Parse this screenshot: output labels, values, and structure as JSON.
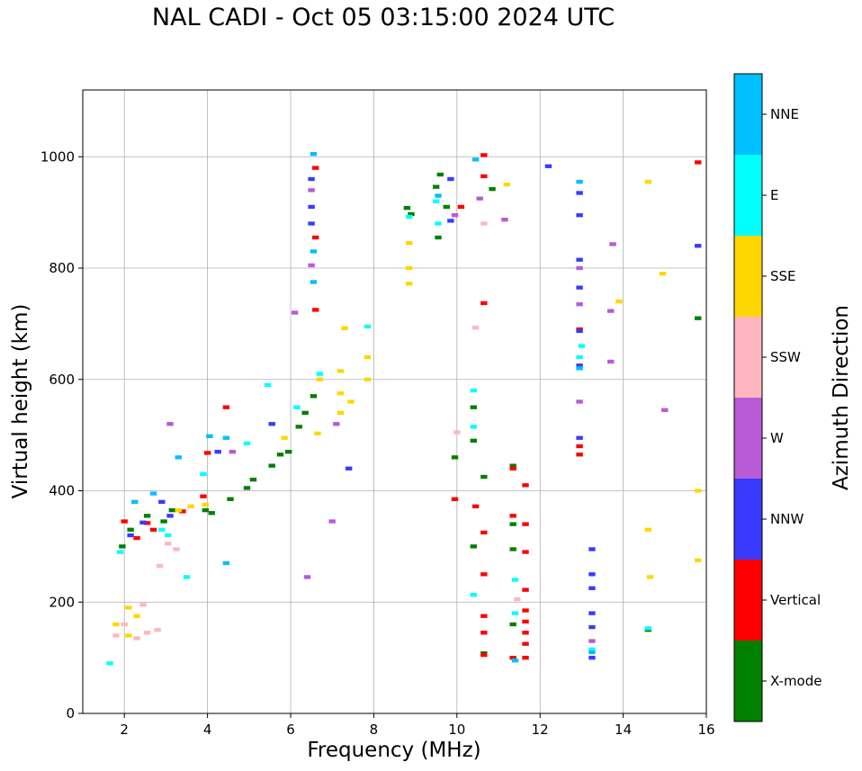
{
  "chart_data": {
    "type": "scatter",
    "title": "NAL CADI - Oct 05 03:15:00 2024 UTC",
    "xlabel": "Frequency (MHz)",
    "ylabel": "Virtual height (km)",
    "xlim": [
      1,
      16
    ],
    "ylim": [
      0,
      1120
    ],
    "xticks": [
      2,
      4,
      6,
      8,
      10,
      12,
      14,
      16
    ],
    "yticks": [
      0,
      200,
      400,
      600,
      800,
      1000
    ],
    "grid": true,
    "colorbar": {
      "label": "Azimuth Direction",
      "categories": [
        {
          "name": "X-mode",
          "color": "#008000"
        },
        {
          "name": "Vertical",
          "color": "#ff0000"
        },
        {
          "name": "NNW",
          "color": "#3a3aff"
        },
        {
          "name": "W",
          "color": "#b85ad6"
        },
        {
          "name": "SSW",
          "color": "#ffb6c1"
        },
        {
          "name": "SSE",
          "color": "#ffd700"
        },
        {
          "name": "E",
          "color": "#00ffff"
        },
        {
          "name": "NNE",
          "color": "#00bfff"
        }
      ]
    },
    "series": [
      {
        "name": "X-mode",
        "points": [
          [
            1.95,
            300
          ],
          [
            2.15,
            330
          ],
          [
            2.55,
            355
          ],
          [
            2.95,
            345
          ],
          [
            3.15,
            365
          ],
          [
            3.95,
            365
          ],
          [
            4.1,
            360
          ],
          [
            4.55,
            385
          ],
          [
            4.95,
            405
          ],
          [
            5.1,
            420
          ],
          [
            5.55,
            445
          ],
          [
            5.75,
            465
          ],
          [
            5.95,
            470
          ],
          [
            6.2,
            515
          ],
          [
            6.35,
            540
          ],
          [
            6.55,
            570
          ],
          [
            8.8,
            908
          ],
          [
            8.9,
            897
          ],
          [
            9.5,
            946
          ],
          [
            9.6,
            968
          ],
          [
            9.75,
            910
          ],
          [
            9.55,
            855
          ],
          [
            9.95,
            460
          ],
          [
            10.4,
            490
          ],
          [
            10.4,
            550
          ],
          [
            10.4,
            300
          ],
          [
            10.65,
            425
          ],
          [
            10.65,
            108
          ],
          [
            10.85,
            942
          ],
          [
            11.35,
            340
          ],
          [
            11.35,
            295
          ],
          [
            11.35,
            160
          ],
          [
            11.35,
            445
          ],
          [
            14.6,
            150
          ],
          [
            15.8,
            710
          ]
        ]
      },
      {
        "name": "Vertical",
        "points": [
          [
            2.0,
            345
          ],
          [
            2.3,
            315
          ],
          [
            2.55,
            342
          ],
          [
            2.7,
            330
          ],
          [
            3.4,
            363
          ],
          [
            3.9,
            390
          ],
          [
            4.0,
            468
          ],
          [
            4.45,
            550
          ],
          [
            6.6,
            855
          ],
          [
            6.6,
            980
          ],
          [
            6.6,
            725
          ],
          [
            10.65,
            1003
          ],
          [
            10.65,
            965
          ],
          [
            10.65,
            737
          ],
          [
            10.65,
            325
          ],
          [
            10.65,
            250
          ],
          [
            10.65,
            175
          ],
          [
            10.65,
            145
          ],
          [
            10.65,
            105
          ],
          [
            11.35,
            440
          ],
          [
            11.35,
            355
          ],
          [
            11.35,
            100
          ],
          [
            11.65,
            340
          ],
          [
            11.65,
            290
          ],
          [
            11.65,
            222
          ],
          [
            11.65,
            185
          ],
          [
            11.65,
            165
          ],
          [
            11.65,
            145
          ],
          [
            11.65,
            125
          ],
          [
            11.65,
            100
          ],
          [
            11.65,
            410
          ],
          [
            12.95,
            480
          ],
          [
            12.95,
            465
          ],
          [
            12.95,
            690
          ],
          [
            10.1,
            910
          ],
          [
            9.95,
            385
          ],
          [
            10.45,
            372
          ],
          [
            15.8,
            990
          ]
        ]
      },
      {
        "name": "NNW",
        "points": [
          [
            2.15,
            320
          ],
          [
            2.45,
            343
          ],
          [
            2.9,
            380
          ],
          [
            3.1,
            355
          ],
          [
            4.25,
            470
          ],
          [
            5.55,
            520
          ],
          [
            6.5,
            880
          ],
          [
            6.5,
            910
          ],
          [
            6.5,
            960
          ],
          [
            7.4,
            440
          ],
          [
            12.95,
            935
          ],
          [
            12.95,
            895
          ],
          [
            12.95,
            815
          ],
          [
            12.95,
            765
          ],
          [
            12.95,
            687
          ],
          [
            12.95,
            625
          ],
          [
            12.95,
            495
          ],
          [
            13.25,
            295
          ],
          [
            13.25,
            250
          ],
          [
            13.25,
            225
          ],
          [
            13.25,
            180
          ],
          [
            13.25,
            155
          ],
          [
            13.25,
            100
          ],
          [
            9.85,
            960
          ],
          [
            9.85,
            885
          ],
          [
            12.2,
            983
          ],
          [
            15.8,
            840
          ]
        ]
      },
      {
        "name": "W",
        "points": [
          [
            3.1,
            520
          ],
          [
            4.6,
            470
          ],
          [
            6.1,
            720
          ],
          [
            6.5,
            805
          ],
          [
            6.5,
            940
          ],
          [
            7.0,
            345
          ],
          [
            7.1,
            520
          ],
          [
            9.95,
            895
          ],
          [
            10.55,
            925
          ],
          [
            11.15,
            887
          ],
          [
            13.75,
            843
          ],
          [
            13.7,
            723
          ],
          [
            13.7,
            632
          ],
          [
            12.95,
            735
          ],
          [
            12.95,
            560
          ],
          [
            12.95,
            800
          ],
          [
            13.25,
            130
          ],
          [
            6.4,
            245
          ],
          [
            15.0,
            545
          ]
        ]
      },
      {
        "name": "SSW",
        "points": [
          [
            1.8,
            140
          ],
          [
            2.0,
            160
          ],
          [
            2.3,
            135
          ],
          [
            2.55,
            145
          ],
          [
            2.8,
            150
          ],
          [
            2.45,
            195
          ],
          [
            2.85,
            265
          ],
          [
            3.25,
            295
          ],
          [
            3.05,
            305
          ],
          [
            10.0,
            505
          ],
          [
            10.65,
            880
          ],
          [
            10.45,
            693
          ],
          [
            11.45,
            205
          ]
        ]
      },
      {
        "name": "SSE",
        "points": [
          [
            1.8,
            160
          ],
          [
            2.1,
            140
          ],
          [
            2.3,
            175
          ],
          [
            2.1,
            190
          ],
          [
            3.3,
            365
          ],
          [
            3.6,
            372
          ],
          [
            3.95,
            375
          ],
          [
            5.85,
            495
          ],
          [
            6.65,
            503
          ],
          [
            6.7,
            600
          ],
          [
            7.2,
            540
          ],
          [
            7.2,
            575
          ],
          [
            7.2,
            615
          ],
          [
            7.45,
            560
          ],
          [
            7.85,
            600
          ],
          [
            7.85,
            640
          ],
          [
            8.85,
            845
          ],
          [
            8.85,
            800
          ],
          [
            8.85,
            772
          ],
          [
            11.2,
            950
          ],
          [
            14.6,
            955
          ],
          [
            14.95,
            790
          ],
          [
            13.9,
            740
          ],
          [
            7.3,
            692
          ],
          [
            15.8,
            400
          ],
          [
            15.8,
            275
          ],
          [
            14.65,
            245
          ],
          [
            14.6,
            330
          ]
        ]
      },
      {
        "name": "E",
        "points": [
          [
            1.65,
            90
          ],
          [
            1.9,
            290
          ],
          [
            2.9,
            330
          ],
          [
            3.05,
            320
          ],
          [
            3.5,
            245
          ],
          [
            3.9,
            430
          ],
          [
            4.95,
            485
          ],
          [
            5.45,
            590
          ],
          [
            6.15,
            550
          ],
          [
            6.7,
            610
          ],
          [
            7.85,
            695
          ],
          [
            8.85,
            892
          ],
          [
            9.5,
            920
          ],
          [
            9.55,
            880
          ],
          [
            10.4,
            580
          ],
          [
            10.4,
            515
          ],
          [
            10.4,
            213
          ],
          [
            11.4,
            240
          ],
          [
            11.4,
            180
          ],
          [
            13.0,
            660
          ],
          [
            12.95,
            640
          ],
          [
            13.25,
            115
          ],
          [
            14.6,
            153
          ]
        ]
      },
      {
        "name": "NNE",
        "points": [
          [
            2.25,
            380
          ],
          [
            2.7,
            395
          ],
          [
            3.3,
            460
          ],
          [
            4.05,
            498
          ],
          [
            4.45,
            495
          ],
          [
            6.55,
            1005
          ],
          [
            6.55,
            830
          ],
          [
            6.55,
            775
          ],
          [
            9.55,
            930
          ],
          [
            10.45,
            995
          ],
          [
            11.4,
            95
          ],
          [
            12.95,
            955
          ],
          [
            12.95,
            620
          ],
          [
            13.25,
            110
          ],
          [
            4.45,
            270
          ]
        ]
      }
    ]
  }
}
